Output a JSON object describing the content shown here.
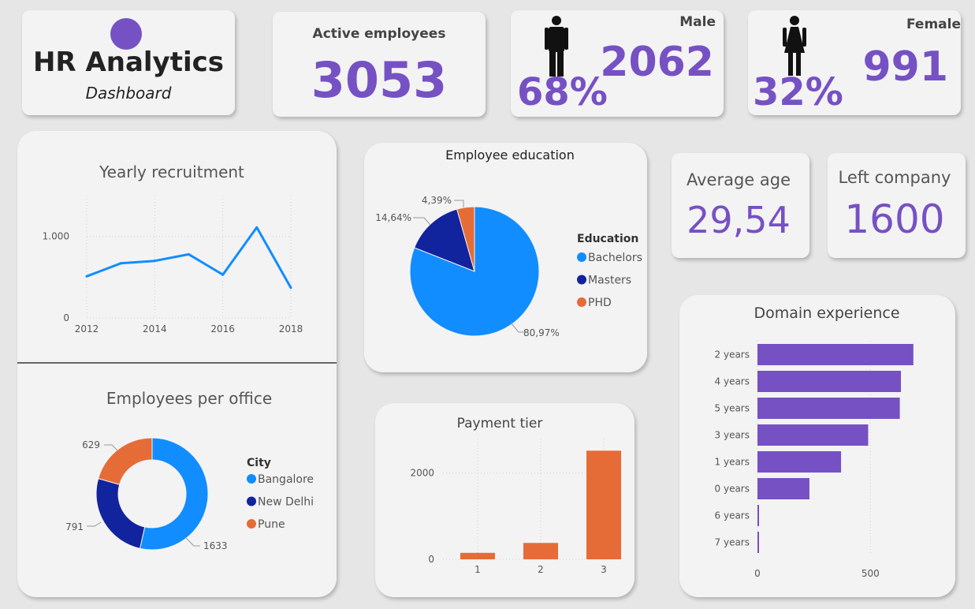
{
  "header": {
    "title": "HR Analytics",
    "subtitle": "Dashboard",
    "logo_icon": "purple-circle-icon",
    "logo_color": "#7651c3"
  },
  "kpis": {
    "active": {
      "label": "Active employees",
      "value": "3053"
    },
    "male": {
      "label": "Male",
      "value": "2062",
      "pct": "68%",
      "icon": "male-person-icon"
    },
    "female": {
      "label": "Female",
      "value": "991",
      "pct": "32%",
      "icon": "female-person-icon"
    },
    "age": {
      "label": "Average age",
      "value": "29,54"
    },
    "left": {
      "label": "Left company",
      "value": "1600"
    }
  },
  "colors": {
    "accent": "#7651c3",
    "blue": "#118dff",
    "navy": "#12239e",
    "orange": "#e66c37",
    "line": "#118dff"
  },
  "chart_data": [
    {
      "id": "yearly",
      "type": "line",
      "title": "Yearly recruitment",
      "x": [
        2012,
        2013,
        2014,
        2015,
        2016,
        2017,
        2018
      ],
      "y": [
        510,
        670,
        700,
        780,
        530,
        1110,
        370
      ],
      "xticks": [
        "2012",
        "2014",
        "2016",
        "2018"
      ],
      "yticks": [
        "0",
        "1.000"
      ],
      "ylim": [
        0,
        1500
      ],
      "grid": true
    },
    {
      "id": "education",
      "type": "pie",
      "title": "Employee education",
      "legend_title": "Education",
      "legend_position": "right",
      "slices": [
        {
          "name": "Bachelors",
          "value": 80.97,
          "label": "80,97%"
        },
        {
          "name": "Masters",
          "value": 14.64,
          "label": "14,64%"
        },
        {
          "name": "PHD",
          "value": 4.39,
          "label": "4,39%"
        }
      ]
    },
    {
      "id": "office",
      "type": "pie",
      "title": "Employees per office",
      "legend_title": "City",
      "legend_position": "right",
      "slices": [
        {
          "name": "Bangalore",
          "value": 1633,
          "label": "1633"
        },
        {
          "name": "New Delhi",
          "value": 791,
          "label": "791"
        },
        {
          "name": "Pune",
          "value": 629,
          "label": "629"
        }
      ]
    },
    {
      "id": "payment",
      "type": "bar",
      "title": "Payment tier",
      "categories": [
        "1",
        "2",
        "3"
      ],
      "values": [
        150,
        380,
        2520
      ],
      "yticks": [
        "0",
        "2000"
      ],
      "ylim": [
        0,
        2800
      ]
    },
    {
      "id": "domain",
      "type": "bar",
      "orientation": "horizontal",
      "title": "Domain experience",
      "categories": [
        "2 years",
        "4 years",
        "5 years",
        "3 years",
        "1 years",
        "0 years",
        "6 years",
        "7 years"
      ],
      "values": [
        690,
        635,
        630,
        490,
        370,
        230,
        5,
        5
      ],
      "xticks": [
        "0",
        "500"
      ],
      "xlim": [
        0,
        750
      ]
    }
  ]
}
